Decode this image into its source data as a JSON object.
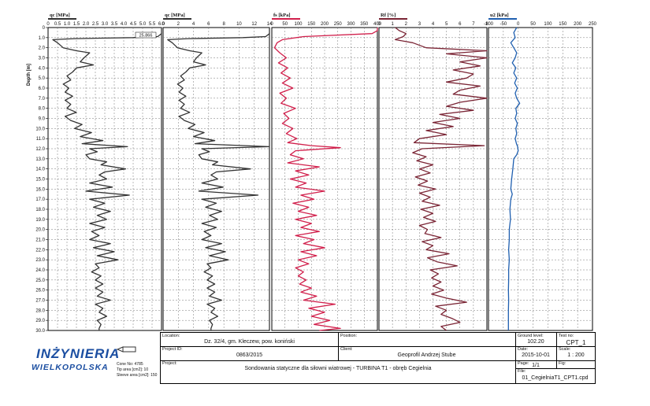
{
  "chart_data": {
    "type": "line",
    "depth_axis": {
      "label": "Depth [m]",
      "range": [
        0,
        30
      ],
      "ticks": [
        "0",
        "1.0",
        "2.0",
        "3.0",
        "4.0",
        "5.0",
        "6.0",
        "7.0",
        "8.0",
        "9.0",
        "10.0",
        "11.0",
        "12.0",
        "13.0",
        "14.0",
        "15.0",
        "16.0",
        "17.0",
        "18.0",
        "19.0",
        "20.0",
        "21.0",
        "22.0",
        "23.0",
        "24.0",
        "25.0",
        "26.0",
        "27.0",
        "28.0",
        "29.0",
        "30.0"
      ]
    },
    "panels": [
      {
        "name": "qc [MPa]",
        "range": [
          0,
          6
        ],
        "ticks": [
          "0",
          "0.5",
          "1.0",
          "1.5",
          "2.0",
          "2.5",
          "3.0",
          "3.5",
          "4.0",
          "4.5",
          "5.0",
          "5.5",
          "6.0"
        ],
        "color": "#333333",
        "clip_label": "25.866",
        "depth": [
          0,
          0.3,
          0.6,
          0.9,
          1.0,
          1.1,
          1.2,
          1.5,
          2.0,
          2.3,
          2.5,
          3.0,
          3.4,
          3.7,
          4.0,
          4.4,
          4.8,
          5.2,
          5.6,
          6.0,
          6.4,
          6.8,
          7.2,
          7.6,
          8.0,
          8.4,
          8.8,
          9.2,
          9.6,
          10.0,
          10.4,
          10.8,
          11.2,
          11.5,
          11.8,
          12.0,
          12.3,
          12.6,
          13.0,
          13.3,
          13.6,
          14.0,
          14.3,
          14.6,
          15.0,
          15.4,
          15.8,
          16.2,
          16.6,
          17.0,
          17.4,
          17.8,
          18.2,
          18.6,
          19.0,
          19.4,
          19.8,
          20.2,
          20.6,
          21.0,
          21.4,
          21.8,
          22.2,
          22.6,
          23.0,
          23.4,
          23.8,
          24.2,
          24.6,
          25.0,
          25.4,
          25.8,
          26.2,
          26.6,
          27.0,
          27.4,
          27.8,
          28.2,
          28.6,
          29.0,
          29.4,
          29.8,
          30.0
        ],
        "values": [
          6,
          6,
          6,
          5.8,
          4.5,
          1.4,
          0.25,
          0.5,
          0.8,
          1.5,
          2.2,
          1.9,
          1.7,
          2.4,
          1.5,
          1.3,
          1.0,
          1.2,
          0.8,
          1.1,
          0.9,
          1.3,
          0.9,
          1.2,
          1.0,
          1.5,
          0.9,
          1.2,
          1.8,
          1.4,
          2.3,
          1.7,
          2.9,
          1.8,
          4.2,
          2.2,
          2.6,
          2.0,
          2.2,
          3.1,
          2.8,
          4.1,
          3.0,
          2.7,
          3.1,
          2.2,
          3.4,
          2.0,
          4.3,
          2.2,
          3.0,
          2.4,
          3.3,
          2.6,
          3.1,
          2.2,
          3.0,
          2.3,
          2.7,
          2.2,
          3.3,
          2.4,
          3.5,
          2.6,
          3.7,
          2.5,
          2.7,
          2.3,
          2.8,
          2.5,
          2.9,
          2.5,
          2.9,
          2.6,
          3.3,
          2.5,
          2.9,
          2.7,
          3.1,
          2.6,
          2.8,
          2.7,
          2.7
        ]
      },
      {
        "name": "qc [MPa]",
        "range": [
          0,
          14
        ],
        "ticks": [
          "0",
          "2",
          "4",
          "6",
          "8",
          "10",
          "12",
          "14"
        ],
        "color": "#333333",
        "depth": [
          0,
          0.3,
          0.6,
          0.9,
          1.0,
          1.1,
          1.2,
          1.5,
          2.0,
          2.3,
          2.5,
          3.0,
          3.4,
          3.7,
          4.0,
          4.4,
          4.8,
          5.2,
          5.6,
          6.0,
          6.4,
          6.8,
          7.2,
          7.6,
          8.0,
          8.4,
          8.8,
          9.2,
          9.6,
          10.0,
          10.4,
          10.8,
          11.2,
          11.5,
          11.8,
          12.0,
          12.3,
          12.6,
          13.0,
          13.3,
          13.6,
          14.0,
          14.3,
          14.6,
          15.0,
          15.4,
          15.8,
          16.2,
          16.6,
          17.0,
          17.4,
          17.8,
          18.2,
          18.6,
          19.0,
          19.4,
          19.8,
          20.2,
          20.6,
          21.0,
          21.4,
          21.8,
          22.2,
          22.6,
          23.0,
          23.4,
          23.8,
          24.2,
          24.6,
          25.0,
          25.4,
          25.8,
          26.2,
          26.6,
          27.0,
          27.4,
          27.8,
          28.2,
          28.6,
          29.0,
          29.4,
          29.8,
          30.0
        ],
        "values": [
          14,
          14,
          14,
          13.5,
          10.5,
          3.3,
          0.6,
          1.2,
          1.9,
          3.5,
          5.1,
          4.4,
          4.0,
          5.6,
          3.5,
          3.0,
          2.3,
          2.8,
          1.9,
          2.6,
          2.1,
          3.0,
          2.1,
          2.8,
          2.3,
          3.5,
          2.1,
          2.8,
          4.2,
          3.3,
          5.4,
          4.0,
          6.8,
          4.2,
          14,
          5.1,
          6.1,
          4.7,
          5.1,
          7.2,
          6.5,
          11.5,
          7.0,
          6.3,
          7.2,
          5.1,
          7.9,
          4.7,
          12.5,
          5.1,
          7.0,
          5.6,
          7.7,
          6.1,
          7.2,
          5.1,
          7.0,
          5.4,
          6.3,
          5.1,
          7.7,
          5.6,
          8.2,
          6.1,
          8.6,
          5.8,
          6.3,
          5.4,
          6.5,
          5.8,
          6.8,
          5.8,
          6.8,
          6.1,
          7.7,
          5.8,
          6.8,
          6.3,
          7.2,
          6.1,
          6.5,
          6.3,
          6.3
        ]
      },
      {
        "name": "fs [kPa]",
        "range": [
          0,
          400
        ],
        "ticks": [
          "0",
          "50",
          "100",
          "150",
          "200",
          "250",
          "300",
          "350",
          "400"
        ],
        "color": "#d11f4b",
        "depth": [
          0,
          0.3,
          0.6,
          0.9,
          1.2,
          1.5,
          2.0,
          2.5,
          3.0,
          3.5,
          4.0,
          4.5,
          5.0,
          5.5,
          6.0,
          6.5,
          7.0,
          7.5,
          8.0,
          8.5,
          9.0,
          9.5,
          10.0,
          10.5,
          11.0,
          11.4,
          11.7,
          11.9,
          12.2,
          12.6,
          13.0,
          13.4,
          13.8,
          14.2,
          14.6,
          15.0,
          15.4,
          15.8,
          16.2,
          16.6,
          17.0,
          17.4,
          17.8,
          18.2,
          18.6,
          19.0,
          19.4,
          19.8,
          20.2,
          20.6,
          21.0,
          21.4,
          21.8,
          22.2,
          22.6,
          23.0,
          23.4,
          23.8,
          24.2,
          24.6,
          25.0,
          25.4,
          25.8,
          26.2,
          26.6,
          27.0,
          27.4,
          27.8,
          28.2,
          28.6,
          29.0,
          29.4,
          29.8,
          30.0
        ],
        "values": [
          400,
          400,
          380,
          120,
          40,
          20,
          10,
          30,
          55,
          25,
          60,
          35,
          70,
          40,
          80,
          30,
          55,
          35,
          90,
          45,
          65,
          40,
          80,
          55,
          95,
          60,
          150,
          260,
          90,
          70,
          120,
          60,
          180,
          90,
          140,
          70,
          130,
          90,
          200,
          110,
          160,
          80,
          140,
          100,
          170,
          90,
          150,
          110,
          180,
          90,
          160,
          120,
          200,
          110,
          170,
          100,
          140,
          90,
          120,
          100,
          130,
          105,
          150,
          110,
          170,
          120,
          240,
          140,
          200,
          150,
          220,
          160,
          260,
          180
        ]
      },
      {
        "name": "Rf [%]",
        "range": [
          0,
          8
        ],
        "ticks": [
          "0",
          "1",
          "2",
          "3",
          "4",
          "5",
          "6",
          "7",
          "8"
        ],
        "color": "#7a2434",
        "depth": [
          0,
          0.3,
          0.6,
          0.9,
          1.2,
          1.5,
          2.0,
          2.3,
          2.6,
          3.0,
          3.4,
          3.8,
          4.2,
          4.6,
          5.0,
          5.4,
          5.8,
          6.2,
          6.6,
          7.0,
          7.4,
          7.8,
          8.2,
          8.6,
          9.0,
          9.4,
          9.8,
          10.2,
          10.6,
          11.0,
          11.4,
          11.7,
          12.0,
          12.4,
          12.8,
          13.2,
          13.6,
          14.0,
          14.4,
          14.8,
          15.2,
          15.6,
          16.0,
          16.4,
          16.8,
          17.2,
          17.6,
          18.0,
          18.4,
          18.8,
          19.2,
          19.6,
          20.0,
          20.4,
          20.8,
          21.2,
          21.6,
          22.0,
          22.4,
          22.8,
          23.2,
          23.6,
          24.0,
          24.4,
          24.8,
          25.2,
          25.6,
          26.0,
          26.4,
          26.8,
          27.2,
          27.6,
          28.0,
          28.4,
          28.8,
          29.2,
          29.6,
          30.0
        ],
        "values": [
          1.2,
          1.5,
          2.0,
          1.8,
          1.2,
          2.5,
          3.5,
          8.0,
          5.0,
          8.0,
          6.0,
          7.5,
          5.5,
          7.0,
          6.5,
          5.0,
          7.5,
          6.0,
          5.5,
          8.0,
          6.0,
          5.0,
          7.0,
          4.5,
          6.0,
          4.0,
          5.5,
          3.5,
          5.0,
          3.0,
          2.6,
          7.8,
          3.2,
          2.5,
          3.5,
          2.8,
          4.0,
          3.0,
          3.8,
          2.7,
          3.6,
          2.9,
          4.2,
          3.0,
          3.8,
          3.2,
          4.5,
          3.1,
          4.0,
          3.3,
          4.2,
          3.0,
          3.6,
          3.4,
          4.6,
          3.2,
          4.0,
          3.5,
          5.2,
          3.6,
          4.3,
          5.8,
          3.8,
          4.4,
          3.9,
          4.6,
          4.0,
          4.8,
          3.9,
          5.0,
          6.5,
          4.2,
          5.0,
          4.6,
          5.4,
          6.0,
          4.6,
          5.0
        ]
      },
      {
        "name": "u2 [kPa]",
        "range": [
          -100,
          250
        ],
        "ticks": [
          "-100",
          "-50",
          "0",
          "50",
          "100",
          "150",
          "200",
          "250"
        ],
        "color": "#1f5fb0",
        "depth": [
          0,
          0.5,
          1.0,
          1.5,
          2.0,
          2.5,
          3.0,
          3.5,
          4.0,
          4.5,
          5.0,
          5.5,
          6.0,
          6.5,
          7.0,
          7.5,
          8.0,
          8.5,
          9.0,
          9.5,
          10.0,
          10.5,
          11.0,
          11.5,
          11.8,
          12.2,
          12.6,
          13.0,
          14.0,
          15.0,
          16.0,
          16.5,
          17.0,
          18.0,
          19.0,
          20.0,
          21.0,
          22.0,
          23.0,
          24.0,
          25.0,
          26.0,
          27.0,
          28.0,
          29.0,
          30.0
        ],
        "values": [
          -5,
          -15,
          -10,
          -25,
          -15,
          -5,
          -10,
          -20,
          -8,
          -15,
          -5,
          -12,
          -3,
          -10,
          -5,
          5,
          -8,
          -5,
          -10,
          -3,
          -8,
          -5,
          -10,
          -6,
          -2,
          0,
          -5,
          -15,
          -18,
          -22,
          -25,
          -20,
          -25,
          -28,
          -26,
          -30,
          -30,
          -32,
          -30,
          -32,
          -32,
          -33,
          -32,
          -33,
          -33,
          -33
        ]
      }
    ]
  },
  "title_block": {
    "location_label": "Location:",
    "location_value": "Dz. 32/4, gm. Kleczew, pow. koniński",
    "position_label": "Position:",
    "ground_level_label": "Ground level:",
    "ground_level_value": "102.20",
    "test_no_label": "Test no:",
    "test_no_value": "CPT_1",
    "project_id_label": "Project ID:",
    "project_id_value": "0863/2015",
    "client_label": "Client:",
    "client_value": "Geoprofil Andrzej Stube",
    "date_label": "Date:",
    "date_value": "2015-10-01",
    "scale_label": "Scale:",
    "scale_value": "1 : 200",
    "project_label": "Project:",
    "project_value": "Sondowania statyczne dla siłowni wiatrowej - TURBINA T1 - obręb Cegielnia",
    "page_label": "Page:",
    "page_value": "1/1",
    "fig_label": "Fig:",
    "file_label": "File:",
    "file_value": "01_CegielniaT1_CPT1.cpd"
  },
  "logo": {
    "line1": "INŻYNIERIA",
    "line2": "WIELKOPOLSKA",
    "brand_color": "#1b4ea1"
  },
  "cone": {
    "cone_no": "Cone No: 4785",
    "tip_area": "Tip area [cm2]: 10",
    "sleeve_area": "Sleeve area [cm2]: 150"
  }
}
